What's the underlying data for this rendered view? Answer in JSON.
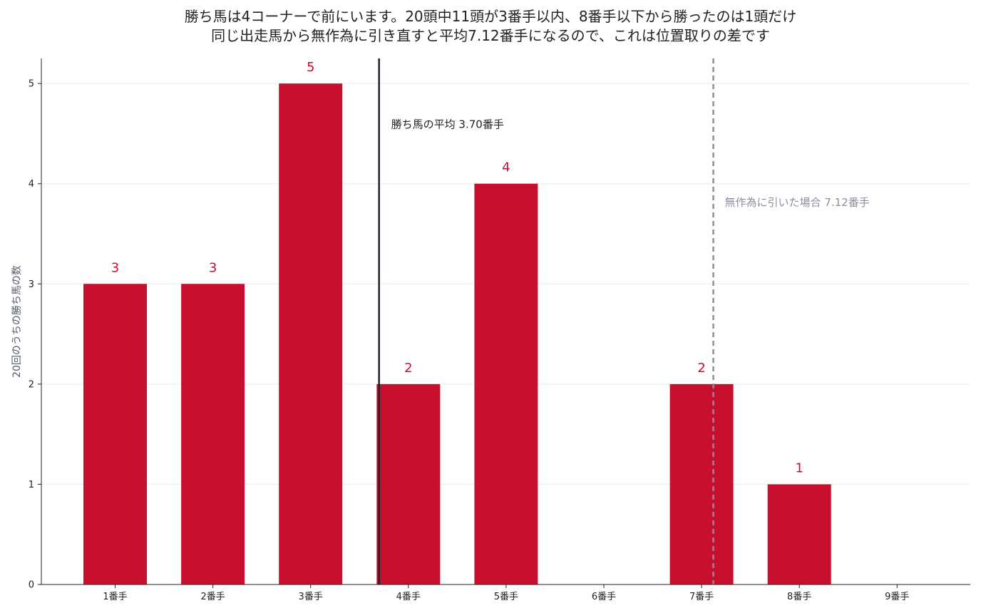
{
  "chart_data": {
    "type": "bar",
    "title_line1": "勝ち馬は4コーナーで前にいます。20頭中11頭が3番手以内、8番手以下から勝ったのは1頭だけ",
    "title_line2": "同じ出走馬から無作為に引き直すと平均7.12番手になるので、これは位置取りの差です",
    "xlabel": "",
    "ylabel": "20回のうちの勝ち馬の数",
    "categories": [
      "1番手",
      "2番手",
      "3番手",
      "4番手",
      "5番手",
      "6番手",
      "7番手",
      "8番手",
      "9番手"
    ],
    "values": [
      3,
      3,
      5,
      2,
      4,
      0,
      2,
      1,
      0
    ],
    "data_labels": [
      "3",
      "3",
      "5",
      "2",
      "4",
      "",
      "2",
      "1",
      ""
    ],
    "ylim": [
      0,
      5.25
    ],
    "yticks": [
      0,
      1,
      2,
      3,
      4,
      5
    ],
    "grid": "horizontal",
    "colors": {
      "bar": "#c8102e",
      "winner_line": "#1f232b",
      "random_line": "#8a8f9c"
    },
    "reference_lines": [
      {
        "x": 3.7,
        "style": "solid",
        "label": "勝ち馬の平均 3.70番手"
      },
      {
        "x": 7.12,
        "style": "dashed",
        "label": "無作為に引いた場合 7.12番手"
      }
    ]
  }
}
